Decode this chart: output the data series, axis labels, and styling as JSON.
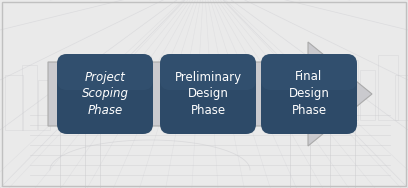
{
  "background_color": "#eaeaea",
  "border_color": "#c0c0c0",
  "arrow_color": "#cacace",
  "arrow_outline": "#aaaaaa",
  "box_color": "#2d4a68",
  "box_text_color": "#ffffff",
  "phases": [
    "Project\nScoping\nPhase",
    "Preliminary\nDesign\nPhase",
    "Final\nDesign\nPhase"
  ],
  "phase_italic": [
    true,
    false,
    false
  ],
  "figsize": [
    4.08,
    1.88
  ],
  "dpi": 100,
  "watermark_line_color": "#d0d0d4",
  "watermark_line_color2": "#c8c8cc"
}
